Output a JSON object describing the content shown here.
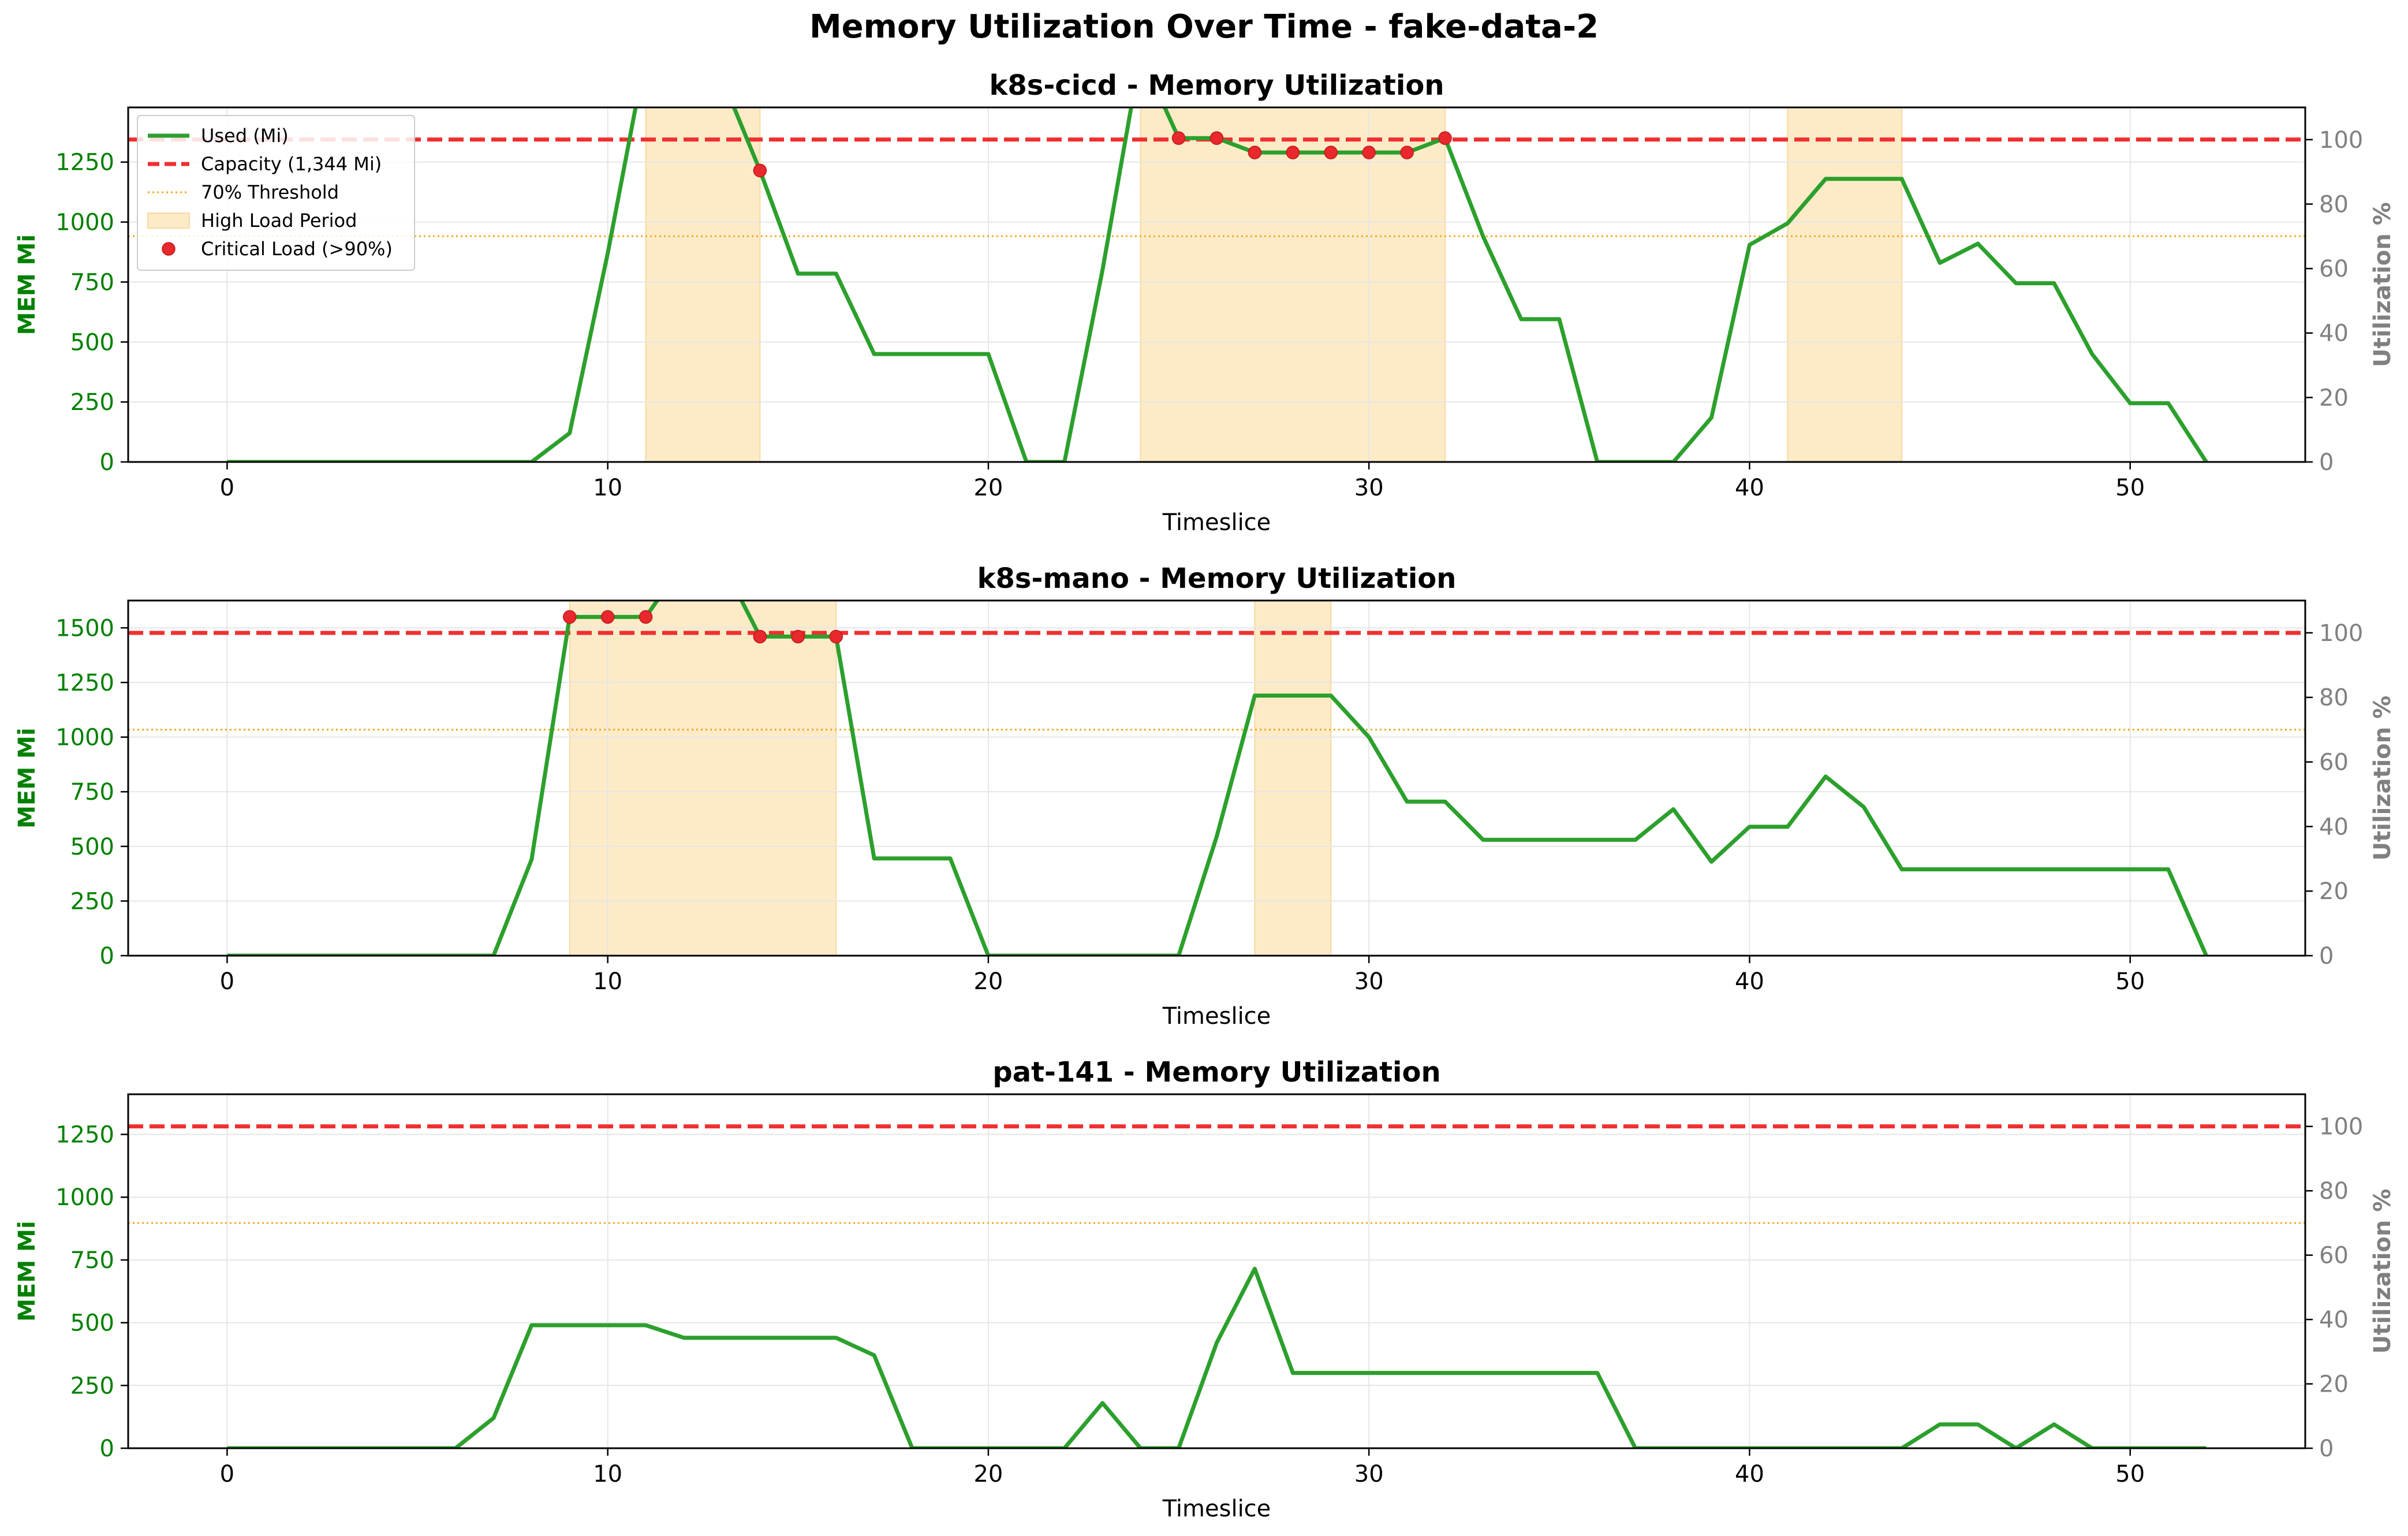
{
  "figure": {
    "title": "Memory Utilization Over Time - fake-data-2"
  },
  "colors": {
    "used": "#2ca02c",
    "capacity": "#f03030",
    "threshold": "#f5a623",
    "high_load": "#fdebc8",
    "critical": "#e8282d",
    "left_axis": "#008000",
    "right_axis": "#808080",
    "grid": "#e6e6e6"
  },
  "legend": {
    "used": "Used (Mi)",
    "capacity": "Capacity (1,344 Mi)",
    "threshold": "70% Threshold",
    "high_load": "High Load Period",
    "critical": "Critical Load (>90%)"
  },
  "chart_data": [
    {
      "type": "line",
      "title": "k8s-cicd - Memory Utilization",
      "xlabel": "Timeslice",
      "ylabel": "MEM Mi",
      "ylabel_right": "Utilization %",
      "xlim": [
        -2.6,
        54.6
      ],
      "ylim": [
        0,
        1478
      ],
      "ylim_right": [
        0,
        110
      ],
      "xticks": [
        0,
        10,
        20,
        30,
        40,
        50
      ],
      "yticks": [
        0,
        250,
        500,
        750,
        1000,
        1250
      ],
      "yticks_right": [
        0,
        20,
        40,
        60,
        80,
        100
      ],
      "grid": true,
      "legend_position": "top-left",
      "capacity": 1344,
      "threshold": 941,
      "high_load_periods": [
        [
          11,
          14
        ],
        [
          24,
          32
        ],
        [
          41,
          44
        ]
      ],
      "series": [
        {
          "name": "Used (Mi)",
          "x": [
            0,
            1,
            2,
            3,
            4,
            5,
            6,
            7,
            8,
            9,
            10,
            11,
            12,
            13,
            14,
            15,
            16,
            17,
            18,
            19,
            20,
            21,
            22,
            23,
            24,
            25,
            26,
            27,
            28,
            29,
            30,
            31,
            32,
            33,
            34,
            35,
            36,
            37,
            38,
            39,
            40,
            41,
            42,
            43,
            44,
            45,
            46,
            47,
            48,
            49,
            50,
            51,
            52
          ],
          "y": [
            0,
            0,
            0,
            0,
            0,
            0,
            0,
            0,
            0,
            120,
            870,
            1700,
            1700,
            1600,
            1215,
            785,
            785,
            450,
            450,
            450,
            450,
            0,
            0,
            800,
            1700,
            1350,
            1350,
            1290,
            1290,
            1290,
            1290,
            1290,
            1350,
            940,
            595,
            595,
            0,
            0,
            0,
            185,
            905,
            995,
            1180,
            1180,
            1180,
            830,
            910,
            745,
            745,
            450,
            245,
            245,
            0
          ]
        }
      ],
      "critical_points": {
        "x": [
          14,
          25,
          26,
          27,
          28,
          29,
          30,
          31,
          32
        ],
        "y": [
          1215,
          1350,
          1350,
          1290,
          1290,
          1290,
          1290,
          1290,
          1350
        ]
      }
    },
    {
      "type": "line",
      "title": "k8s-mano - Memory Utilization",
      "xlabel": "Timeslice",
      "ylabel": "MEM Mi",
      "ylabel_right": "Utilization %",
      "xlim": [
        -2.6,
        54.6
      ],
      "ylim": [
        0,
        1625
      ],
      "ylim_right": [
        0,
        110
      ],
      "xticks": [
        0,
        10,
        20,
        30,
        40,
        50
      ],
      "yticks": [
        0,
        250,
        500,
        750,
        1000,
        1250,
        1500
      ],
      "yticks_right": [
        0,
        20,
        40,
        60,
        80,
        100
      ],
      "grid": true,
      "capacity": 1477,
      "threshold": 1034,
      "high_load_periods": [
        [
          9,
          16
        ],
        [
          27,
          29
        ]
      ],
      "series": [
        {
          "name": "Used (Mi)",
          "x": [
            0,
            1,
            2,
            3,
            4,
            5,
            6,
            7,
            8,
            9,
            10,
            11,
            12,
            13,
            14,
            15,
            16,
            17,
            18,
            19,
            20,
            21,
            22,
            23,
            24,
            25,
            26,
            27,
            28,
            29,
            30,
            31,
            32,
            33,
            34,
            35,
            36,
            37,
            38,
            39,
            40,
            41,
            42,
            43,
            44,
            45,
            46,
            47,
            48,
            49,
            50,
            51,
            52
          ],
          "y": [
            0,
            0,
            0,
            0,
            0,
            0,
            0,
            0,
            440,
            1550,
            1550,
            1550,
            1800,
            1800,
            1460,
            1460,
            1460,
            445,
            445,
            445,
            0,
            0,
            0,
            0,
            0,
            0,
            545,
            1190,
            1190,
            1190,
            1000,
            705,
            705,
            530,
            530,
            530,
            530,
            530,
            670,
            430,
            590,
            590,
            820,
            680,
            395,
            395,
            395,
            395,
            395,
            395,
            395,
            395,
            0
          ]
        }
      ],
      "critical_points": {
        "x": [
          9,
          10,
          11,
          14,
          15,
          16
        ],
        "y": [
          1550,
          1550,
          1550,
          1460,
          1460,
          1460
        ]
      }
    },
    {
      "type": "line",
      "title": "pat-141 - Memory Utilization",
      "xlabel": "Timeslice",
      "ylabel": "MEM Mi",
      "ylabel_right": "Utilization %",
      "xlim": [
        -2.6,
        54.6
      ],
      "ylim": [
        0,
        1410
      ],
      "ylim_right": [
        0,
        110
      ],
      "xticks": [
        0,
        10,
        20,
        30,
        40,
        50
      ],
      "yticks": [
        0,
        250,
        500,
        750,
        1000,
        1250
      ],
      "yticks_right": [
        0,
        20,
        40,
        60,
        80,
        100
      ],
      "grid": true,
      "capacity": 1282,
      "threshold": 897,
      "high_load_periods": [],
      "series": [
        {
          "name": "Used (Mi)",
          "x": [
            0,
            1,
            2,
            3,
            4,
            5,
            6,
            7,
            8,
            9,
            10,
            11,
            12,
            13,
            14,
            15,
            16,
            17,
            18,
            19,
            20,
            21,
            22,
            23,
            24,
            25,
            26,
            27,
            28,
            29,
            30,
            31,
            32,
            33,
            34,
            35,
            36,
            37,
            38,
            39,
            40,
            41,
            42,
            43,
            44,
            45,
            46,
            47,
            48,
            49,
            50,
            51,
            52
          ],
          "y": [
            0,
            0,
            0,
            0,
            0,
            0,
            0,
            120,
            490,
            490,
            490,
            490,
            440,
            440,
            440,
            440,
            440,
            370,
            0,
            0,
            0,
            0,
            0,
            180,
            0,
            0,
            420,
            715,
            300,
            300,
            300,
            300,
            300,
            300,
            300,
            300,
            300,
            0,
            0,
            0,
            0,
            0,
            0,
            0,
            0,
            95,
            95,
            0,
            95,
            0,
            0,
            0,
            0
          ]
        }
      ],
      "critical_points": {
        "x": [],
        "y": []
      }
    }
  ]
}
